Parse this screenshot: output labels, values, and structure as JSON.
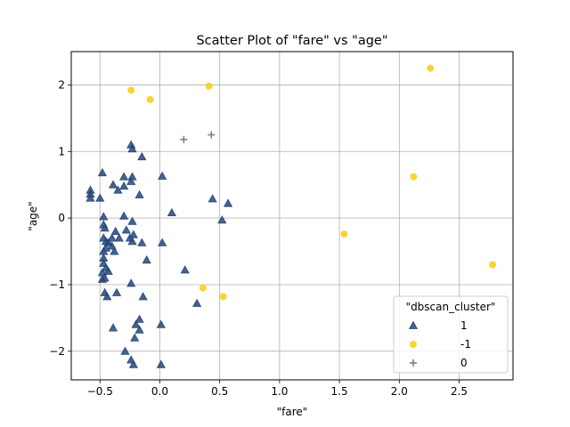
{
  "chart_data": {
    "type": "scatter",
    "title": "Scatter Plot of \"fare\" vs \"age\"",
    "xlabel": "\"fare\"",
    "ylabel": "\"age\"",
    "xlim": [
      -0.74,
      2.95
    ],
    "ylim": [
      -2.43,
      2.5
    ],
    "xticks": [
      -0.5,
      0.0,
      0.5,
      1.0,
      1.5,
      2.0,
      2.5
    ],
    "xtick_labels": [
      "−0.5",
      "0.0",
      "0.5",
      "1.0",
      "1.5",
      "2.0",
      "2.5"
    ],
    "yticks": [
      -2,
      -1,
      0,
      1,
      2
    ],
    "ytick_labels": [
      "−2",
      "−1",
      "0",
      "1",
      "2"
    ],
    "grid": true,
    "legend": {
      "title": "\"dbscan_cluster\"",
      "placement": "bottom-right"
    },
    "series": [
      {
        "name": "1",
        "marker": "triangle",
        "color": "#26477a",
        "points": [
          [
            -0.58,
            0.42
          ],
          [
            -0.58,
            0.36
          ],
          [
            -0.58,
            0.3
          ],
          [
            -0.5,
            0.3
          ],
          [
            -0.48,
            0.68
          ],
          [
            -0.47,
            0.02
          ],
          [
            -0.47,
            -0.1
          ],
          [
            -0.46,
            -0.15
          ],
          [
            -0.47,
            -0.3
          ],
          [
            -0.45,
            -0.35
          ],
          [
            -0.43,
            -0.37
          ],
          [
            -0.45,
            -0.45
          ],
          [
            -0.47,
            -0.5
          ],
          [
            -0.47,
            -0.6
          ],
          [
            -0.47,
            -0.68
          ],
          [
            -0.45,
            -0.75
          ],
          [
            -0.48,
            -0.82
          ],
          [
            -0.46,
            -0.9
          ],
          [
            -0.43,
            -0.8
          ],
          [
            -0.48,
            -0.92
          ],
          [
            -0.46,
            -1.12
          ],
          [
            -0.44,
            -1.18
          ],
          [
            -0.4,
            -0.3
          ],
          [
            -0.4,
            -0.42
          ],
          [
            -0.38,
            -0.5
          ],
          [
            -0.37,
            -0.2
          ],
          [
            -0.34,
            -0.3
          ],
          [
            -0.35,
            0.42
          ],
          [
            -0.3,
            0.48
          ],
          [
            -0.39,
            0.5
          ],
          [
            -0.3,
            0.62
          ],
          [
            -0.3,
            0.03
          ],
          [
            -0.28,
            -0.18
          ],
          [
            -0.25,
            -0.3
          ],
          [
            -0.23,
            -0.35
          ],
          [
            -0.22,
            -0.25
          ],
          [
            -0.24,
            0.55
          ],
          [
            -0.23,
            0.62
          ],
          [
            -0.23,
            -0.05
          ],
          [
            -0.24,
            1.1
          ],
          [
            -0.23,
            1.04
          ],
          [
            -0.15,
            0.92
          ],
          [
            -0.17,
            0.35
          ],
          [
            -0.15,
            -0.37
          ],
          [
            -0.11,
            -0.63
          ],
          [
            0.02,
            0.63
          ],
          [
            0.1,
            0.08
          ],
          [
            0.02,
            -0.37
          ],
          [
            -0.24,
            -0.98
          ],
          [
            -0.14,
            -1.18
          ],
          [
            -0.36,
            -1.12
          ],
          [
            -0.39,
            -1.65
          ],
          [
            -0.17,
            -1.52
          ],
          [
            -0.2,
            -1.6
          ],
          [
            -0.17,
            -1.68
          ],
          [
            -0.21,
            -1.8
          ],
          [
            -0.29,
            -2.0
          ],
          [
            -0.24,
            -2.13
          ],
          [
            -0.22,
            -2.2
          ],
          [
            0.01,
            -1.6
          ],
          [
            0.01,
            -2.2
          ],
          [
            0.21,
            -0.78
          ],
          [
            0.31,
            -1.28
          ],
          [
            0.44,
            0.29
          ],
          [
            0.52,
            -0.03
          ],
          [
            0.57,
            0.22
          ]
        ]
      },
      {
        "name": "-1",
        "marker": "circle",
        "color": "#fbce1e",
        "points": [
          [
            -0.24,
            1.92
          ],
          [
            -0.08,
            1.78
          ],
          [
            0.41,
            1.98
          ],
          [
            2.26,
            2.25
          ],
          [
            2.12,
            0.62
          ],
          [
            1.54,
            -0.24
          ],
          [
            2.78,
            -0.7
          ],
          [
            0.36,
            -1.05
          ],
          [
            0.53,
            -1.18
          ]
        ]
      },
      {
        "name": "0",
        "marker": "plus",
        "color": "#7f7f7f",
        "points": [
          [
            0.2,
            1.18
          ],
          [
            0.43,
            1.25
          ]
        ]
      }
    ]
  }
}
